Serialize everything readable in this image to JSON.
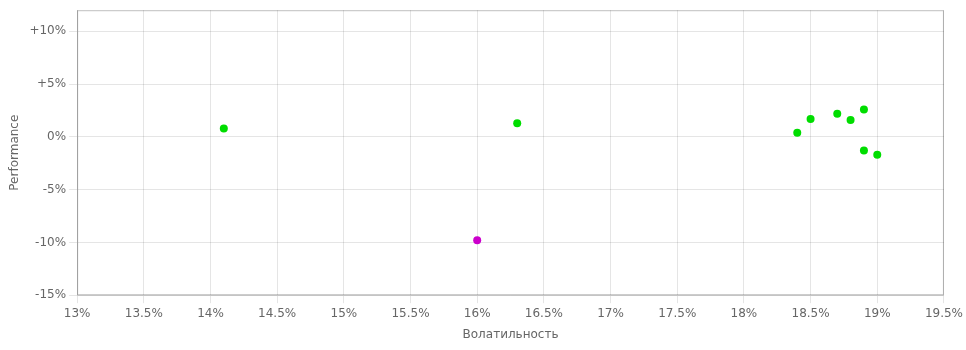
{
  "chart_data": {
    "type": "scatter",
    "xlabel": "Волатильность",
    "ylabel": "Performance",
    "xlim": [
      0.13,
      0.195
    ],
    "ylim": [
      -0.15,
      0.12
    ],
    "xticks": [
      {
        "value": 0.13,
        "label": "13%"
      },
      {
        "value": 0.135,
        "label": "13.5%"
      },
      {
        "value": 0.14,
        "label": "14%"
      },
      {
        "value": 0.145,
        "label": "14.5%"
      },
      {
        "value": 0.15,
        "label": "15%"
      },
      {
        "value": 0.155,
        "label": "15.5%"
      },
      {
        "value": 0.16,
        "label": "16%"
      },
      {
        "value": 0.165,
        "label": "16.5%"
      },
      {
        "value": 0.17,
        "label": "17%"
      },
      {
        "value": 0.175,
        "label": "17.5%"
      },
      {
        "value": 0.18,
        "label": "18%"
      },
      {
        "value": 0.185,
        "label": "18.5%"
      },
      {
        "value": 0.19,
        "label": "19%"
      },
      {
        "value": 0.195,
        "label": "19.5%"
      }
    ],
    "yticks": [
      {
        "value": -0.15,
        "label": "-15%"
      },
      {
        "value": -0.1,
        "label": "-10%"
      },
      {
        "value": -0.05,
        "label": "-5%"
      },
      {
        "value": 0.0,
        "label": "0%"
      },
      {
        "value": 0.05,
        "label": "+5%"
      },
      {
        "value": 0.1,
        "label": "+10%"
      }
    ],
    "grid": true,
    "series": [
      {
        "color": "#00dd00",
        "x": [
          0.141,
          0.163,
          0.184,
          0.185,
          0.187,
          0.188,
          0.189,
          0.189,
          0.19
        ],
        "values": [
          0.008,
          0.013,
          0.004,
          0.017,
          0.022,
          0.016,
          0.026,
          -0.013,
          -0.017
        ]
      },
      {
        "color": "#cc00cc",
        "x": [
          0.16
        ],
        "values": [
          -0.098
        ]
      }
    ]
  }
}
